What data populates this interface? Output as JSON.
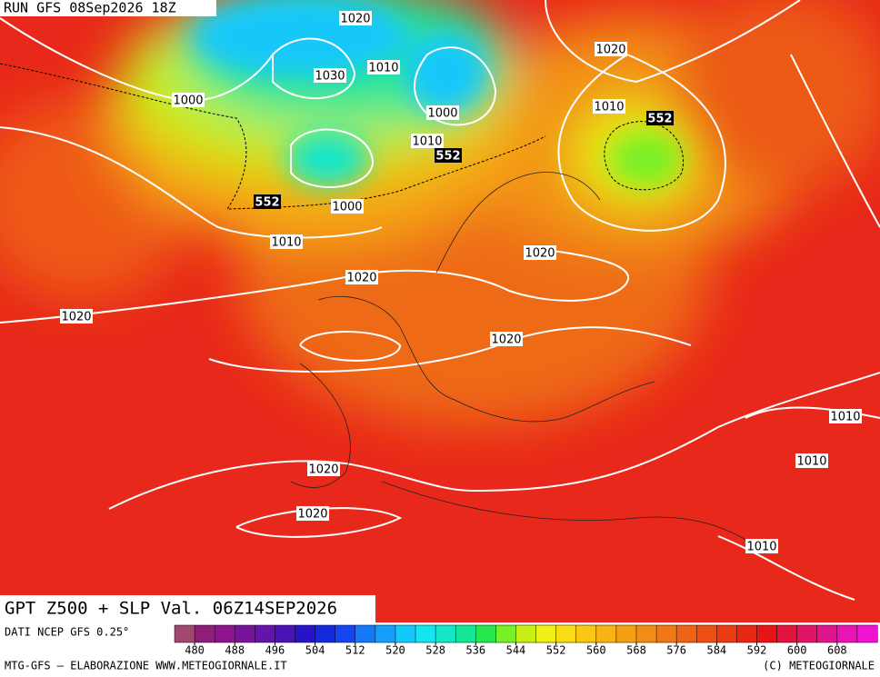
{
  "header": {
    "run": "RUN GFS 08Sep2026 18Z"
  },
  "footer": {
    "title": "GPT Z500 + SLP Val. 06Z14SEP2026",
    "source": "DATI NCEP GFS 0.25°",
    "credit": "MTG-GFS — ELABORAZIONE WWW.METEOGIORNALE.IT",
    "copyright": "(C) METEOGIORNALE"
  },
  "slp_labels": [
    1020,
    1030,
    1010,
    1000,
    1000,
    1020,
    1010,
    1010,
    1000,
    1010,
    1020,
    1020,
    1020,
    1020,
    1010,
    1010,
    1020,
    1020,
    1010
  ],
  "gpt_labels": [
    552,
    552,
    552
  ],
  "colorbar": {
    "lim": [
      476,
      616
    ],
    "ticks": [
      480,
      488,
      496,
      504,
      512,
      520,
      528,
      536,
      544,
      552,
      560,
      568,
      576,
      584,
      592,
      600,
      608
    ],
    "colors": [
      "#a04870",
      "#901e78",
      "#8c148c",
      "#78149a",
      "#6414a8",
      "#4a14b4",
      "#2814c8",
      "#1428dc",
      "#1446f0",
      "#1478f8",
      "#14a0fa",
      "#14c8fa",
      "#14e6f0",
      "#14e6c8",
      "#14e696",
      "#28e650",
      "#78f028",
      "#c8f014",
      "#f0f014",
      "#fadc14",
      "#fac814",
      "#f8b414",
      "#f5a014",
      "#f28c14",
      "#f07814",
      "#ee6414",
      "#ec5014",
      "#ea3c14",
      "#e82814",
      "#e61414",
      "#e0143c",
      "#e01464",
      "#e0148c",
      "#e814b4",
      "#f014d2"
    ]
  }
}
